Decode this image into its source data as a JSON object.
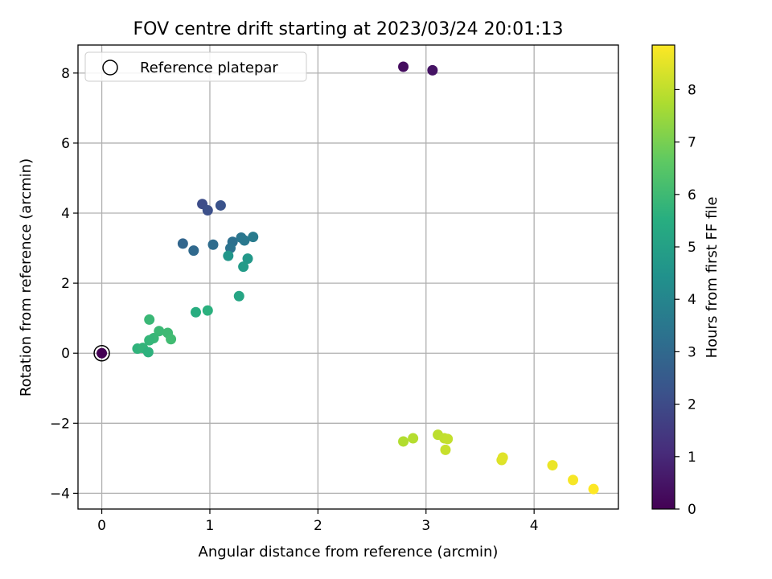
{
  "chart_data": {
    "type": "scatter",
    "title": "FOV centre drift starting at 2023/03/24 20:01:13",
    "xlabel": "Angular distance from reference (arcmin)",
    "ylabel": "Rotation from reference (arcmin)",
    "xlim": [
      -0.22,
      4.78
    ],
    "ylim": [
      -4.45,
      8.8
    ],
    "xticks": [
      0,
      1,
      2,
      3,
      4
    ],
    "yticks": [
      -4,
      -2,
      0,
      2,
      4,
      6,
      8
    ],
    "xtick_labels": [
      "0",
      "1",
      "2",
      "3",
      "4"
    ],
    "ytick_labels": [
      "−4",
      "−2",
      "0",
      "2",
      "4",
      "6",
      "8"
    ],
    "grid": true,
    "colormap": "viridis",
    "colorbar": {
      "label": "Hours from first FF file",
      "range": [
        0,
        8.85
      ],
      "ticks": [
        0,
        1,
        2,
        3,
        4,
        5,
        6,
        7,
        8
      ],
      "tick_labels": [
        "0",
        "1",
        "2",
        "3",
        "4",
        "5",
        "6",
        "7",
        "8"
      ]
    },
    "legend": {
      "position": "upper-left",
      "label": "Reference platepar"
    },
    "reference_point": {
      "x": 0,
      "y": 0
    },
    "points": [
      {
        "x": 0.0,
        "y": 0.0,
        "c": 0.0
      },
      {
        "x": 2.79,
        "y": 8.18,
        "c": 0.3
      },
      {
        "x": 3.06,
        "y": 8.08,
        "c": 0.45
      },
      {
        "x": 0.93,
        "y": 4.26,
        "c": 2.05
      },
      {
        "x": 0.98,
        "y": 4.08,
        "c": 2.15
      },
      {
        "x": 1.1,
        "y": 4.22,
        "c": 2.25
      },
      {
        "x": 0.75,
        "y": 3.13,
        "c": 2.9
      },
      {
        "x": 0.85,
        "y": 2.93,
        "c": 3.0
      },
      {
        "x": 1.03,
        "y": 3.1,
        "c": 3.1
      },
      {
        "x": 1.21,
        "y": 3.18,
        "c": 3.25
      },
      {
        "x": 1.19,
        "y": 3.0,
        "c": 3.35
      },
      {
        "x": 1.29,
        "y": 3.3,
        "c": 3.45
      },
      {
        "x": 1.32,
        "y": 3.22,
        "c": 3.55
      },
      {
        "x": 1.4,
        "y": 3.32,
        "c": 3.65
      },
      {
        "x": 1.17,
        "y": 2.78,
        "c": 4.6
      },
      {
        "x": 1.35,
        "y": 2.7,
        "c": 4.7
      },
      {
        "x": 1.31,
        "y": 2.47,
        "c": 4.8
      },
      {
        "x": 1.27,
        "y": 1.63,
        "c": 5.2
      },
      {
        "x": 0.87,
        "y": 1.17,
        "c": 5.5
      },
      {
        "x": 0.98,
        "y": 1.22,
        "c": 5.6
      },
      {
        "x": 0.44,
        "y": 0.96,
        "c": 5.9
      },
      {
        "x": 0.53,
        "y": 0.63,
        "c": 5.95
      },
      {
        "x": 0.61,
        "y": 0.58,
        "c": 6.0
      },
      {
        "x": 0.64,
        "y": 0.4,
        "c": 6.05
      },
      {
        "x": 0.48,
        "y": 0.43,
        "c": 5.85
      },
      {
        "x": 0.44,
        "y": 0.37,
        "c": 5.8
      },
      {
        "x": 0.33,
        "y": 0.13,
        "c": 5.7
      },
      {
        "x": 0.38,
        "y": 0.15,
        "c": 5.75
      },
      {
        "x": 0.43,
        "y": 0.03,
        "c": 5.65
      },
      {
        "x": 2.79,
        "y": -2.52,
        "c": 7.8
      },
      {
        "x": 2.88,
        "y": -2.43,
        "c": 7.85
      },
      {
        "x": 3.11,
        "y": -2.33,
        "c": 7.95
      },
      {
        "x": 3.17,
        "y": -2.43,
        "c": 8.0
      },
      {
        "x": 3.2,
        "y": -2.45,
        "c": 8.05
      },
      {
        "x": 3.18,
        "y": -2.76,
        "c": 8.1
      },
      {
        "x": 3.7,
        "y": -3.05,
        "c": 8.4
      },
      {
        "x": 3.71,
        "y": -2.98,
        "c": 8.45
      },
      {
        "x": 4.17,
        "y": -3.2,
        "c": 8.6
      },
      {
        "x": 4.36,
        "y": -3.62,
        "c": 8.75
      },
      {
        "x": 4.55,
        "y": -3.88,
        "c": 8.85
      }
    ]
  }
}
